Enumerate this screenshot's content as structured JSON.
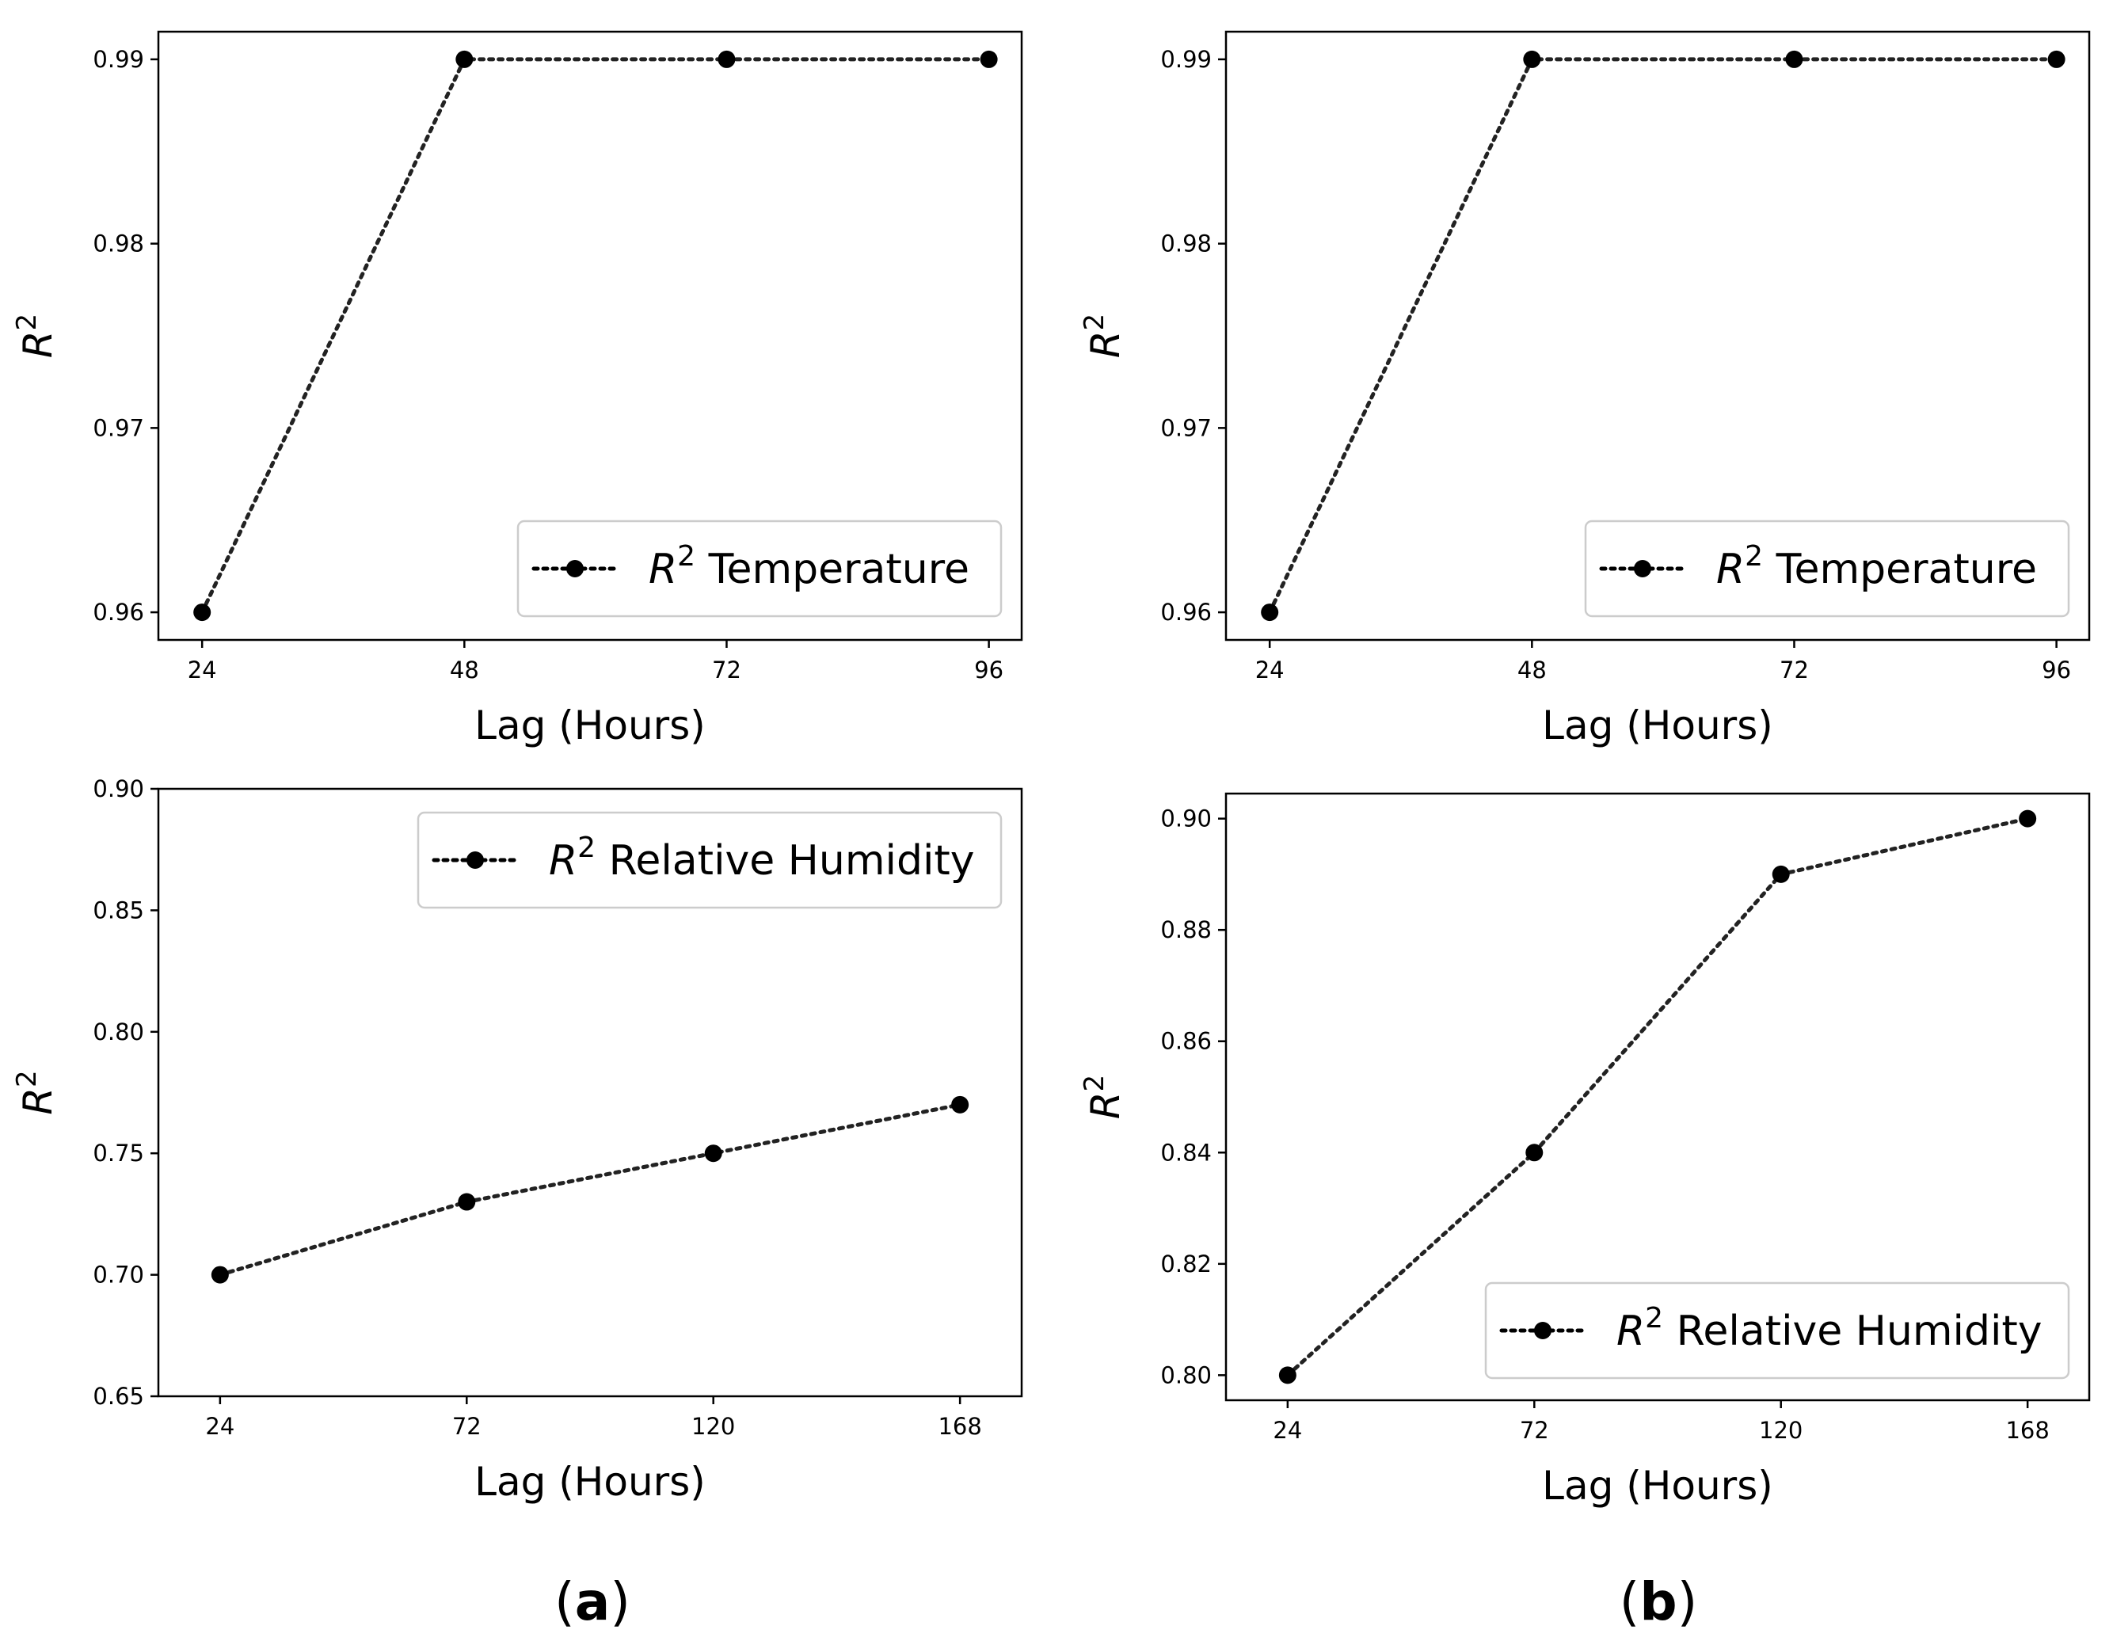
{
  "chart_data": [
    {
      "id": "a-top",
      "type": "line",
      "x": [
        24,
        48,
        72,
        96
      ],
      "series": [
        {
          "name": "R2 Temperature",
          "values": [
            0.96,
            0.99,
            0.99,
            0.99
          ]
        }
      ],
      "xticks": [
        "24",
        "48",
        "72",
        "96"
      ],
      "yticks": [
        "0.96",
        "0.97",
        "0.98",
        "0.99"
      ],
      "yticks_values": [
        0.96,
        0.97,
        0.98,
        0.99
      ],
      "xlim": [
        20,
        99
      ],
      "ylim": [
        0.9585,
        0.9915
      ],
      "xlabel": "Lag (Hours)",
      "ylabel": "R",
      "ylabel_sup": "2",
      "legend": {
        "prefix": "R",
        "sup": "2",
        "label": " Temperature",
        "position": "lower right"
      }
    },
    {
      "id": "b-top",
      "type": "line",
      "x": [
        24,
        48,
        72,
        96
      ],
      "series": [
        {
          "name": "R2 Temperature",
          "values": [
            0.96,
            0.99,
            0.99,
            0.99
          ]
        }
      ],
      "xticks": [
        "24",
        "48",
        "72",
        "96"
      ],
      "yticks": [
        "0.96",
        "0.97",
        "0.98",
        "0.99"
      ],
      "yticks_values": [
        0.96,
        0.97,
        0.98,
        0.99
      ],
      "xlim": [
        20,
        99
      ],
      "ylim": [
        0.9585,
        0.9915
      ],
      "xlabel": "Lag (Hours)",
      "ylabel": "R",
      "ylabel_sup": "2",
      "legend": {
        "prefix": "R",
        "sup": "2",
        "label": " Temperature",
        "position": "lower right"
      }
    },
    {
      "id": "a-bottom",
      "type": "line",
      "x": [
        24,
        72,
        120,
        168
      ],
      "series": [
        {
          "name": "R2 Relative Humidity",
          "values": [
            0.7,
            0.73,
            0.75,
            0.77
          ]
        }
      ],
      "xticks": [
        "24",
        "72",
        "120",
        "168"
      ],
      "yticks": [
        "0.65",
        "0.70",
        "0.75",
        "0.80",
        "0.85",
        "0.90"
      ],
      "yticks_values": [
        0.65,
        0.7,
        0.75,
        0.8,
        0.85,
        0.9
      ],
      "xlim": [
        12,
        180
      ],
      "ylim": [
        0.65,
        0.9
      ],
      "xlabel": "Lag (Hours)",
      "ylabel": "R",
      "ylabel_sup": "2",
      "legend": {
        "prefix": "R",
        "sup": "2",
        "label": " Relative Humidity",
        "position": "upper right"
      }
    },
    {
      "id": "b-bottom",
      "type": "line",
      "x": [
        24,
        72,
        120,
        168
      ],
      "series": [
        {
          "name": "R2 Relative Humidity",
          "values": [
            0.8,
            0.84,
            0.89,
            0.9
          ]
        }
      ],
      "xticks": [
        "24",
        "72",
        "120",
        "168"
      ],
      "yticks": [
        "0.80",
        "0.82",
        "0.84",
        "0.86",
        "0.88",
        "0.90"
      ],
      "yticks_values": [
        0.8,
        0.82,
        0.84,
        0.86,
        0.88,
        0.9
      ],
      "xlim": [
        12,
        180
      ],
      "ylim": [
        0.7955,
        0.9045
      ],
      "xlabel": "Lag (Hours)",
      "ylabel": "R",
      "ylabel_sup": "2",
      "legend": {
        "prefix": "R",
        "sup": "2",
        "label": " Relative Humidity",
        "position": "lower right"
      }
    }
  ],
  "panel_labels": {
    "a": "a",
    "b": "b"
  }
}
